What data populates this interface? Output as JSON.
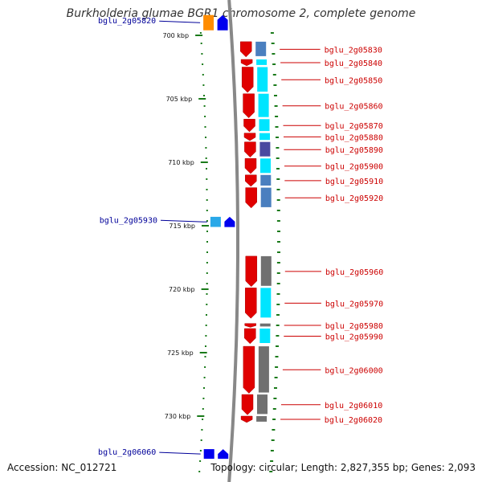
{
  "title": "Burkholderia glumae BGR1 chromosome 2, complete genome",
  "footer": {
    "accession": "Accession: NC_012721",
    "summary": "Topology: circular; Length: 2,827,355 bp; Genes: 2,093"
  },
  "axis": {
    "unit": "kbp",
    "ticks": [
      {
        "label": "700 kbp",
        "kbp": 700
      },
      {
        "label": "705 kbp",
        "kbp": 705
      },
      {
        "label": "710 kbp",
        "kbp": 710
      },
      {
        "label": "715 kbp",
        "kbp": 715
      },
      {
        "label": "720 kbp",
        "kbp": 720
      },
      {
        "label": "725 kbp",
        "kbp": 725
      },
      {
        "label": "730 kbp",
        "kbp": 730
      }
    ]
  },
  "colors": {
    "forward_strand": "#e00000",
    "reverse_strand": "#0000ee",
    "forward_label": "#cc0000",
    "reverse_label": "#000099",
    "tick": "#1a7a1a",
    "backbone": "#888888"
  },
  "genes": [
    {
      "id": "bglu_2g05820",
      "strand": "reverse",
      "start_kbp": 698.4,
      "end_kbp": 699.6,
      "cog_color": "#ff8c00"
    },
    {
      "id": "bglu_2g05830",
      "strand": "forward",
      "start_kbp": 700.5,
      "end_kbp": 701.7,
      "cog_color": "#4a7fbf"
    },
    {
      "id": "bglu_2g05840",
      "strand": "forward",
      "start_kbp": 701.9,
      "end_kbp": 702.4,
      "cog_color": "#00e5ff"
    },
    {
      "id": "bglu_2g05850",
      "strand": "forward",
      "start_kbp": 702.5,
      "end_kbp": 704.5,
      "cog_color": "#00e5ff"
    },
    {
      "id": "bglu_2g05860",
      "strand": "forward",
      "start_kbp": 704.6,
      "end_kbp": 706.5,
      "cog_color": "#00e5ff"
    },
    {
      "id": "bglu_2g05870",
      "strand": "forward",
      "start_kbp": 706.6,
      "end_kbp": 707.6,
      "cog_color": "#00e5ff"
    },
    {
      "id": "bglu_2g05880",
      "strand": "forward",
      "start_kbp": 707.7,
      "end_kbp": 708.3,
      "cog_color": "#00e5ff"
    },
    {
      "id": "bglu_2g05890",
      "strand": "forward",
      "start_kbp": 708.4,
      "end_kbp": 709.6,
      "cog_color": "#4a4aa0"
    },
    {
      "id": "bglu_2g05900",
      "strand": "forward",
      "start_kbp": 709.7,
      "end_kbp": 710.9,
      "cog_color": "#00e5ff"
    },
    {
      "id": "bglu_2g05910",
      "strand": "forward",
      "start_kbp": 711.0,
      "end_kbp": 711.9,
      "cog_color": "#4a7fbf"
    },
    {
      "id": "bglu_2g05920",
      "strand": "forward",
      "start_kbp": 712.0,
      "end_kbp": 713.6,
      "cog_color": "#4a7fbf"
    },
    {
      "id": "bglu_2g05930",
      "strand": "reverse",
      "start_kbp": 714.3,
      "end_kbp": 715.1,
      "cog_color": "#2aa8e8"
    },
    {
      "id": "bglu_2g05960",
      "strand": "forward",
      "start_kbp": 717.4,
      "end_kbp": 719.8,
      "cog_color": "#707070"
    },
    {
      "id": "bglu_2g05970",
      "strand": "forward",
      "start_kbp": 719.9,
      "end_kbp": 722.3,
      "cog_color": "#00e5ff"
    },
    {
      "id": "bglu_2g05980",
      "strand": "forward",
      "start_kbp": 722.7,
      "end_kbp": 723.0,
      "cog_color": "#707070"
    },
    {
      "id": "bglu_2g05990",
      "strand": "forward",
      "start_kbp": 723.1,
      "end_kbp": 724.3,
      "cog_color": "#00e5ff"
    },
    {
      "id": "bglu_2g06000",
      "strand": "forward",
      "start_kbp": 724.5,
      "end_kbp": 728.2,
      "cog_color": "#707070"
    },
    {
      "id": "bglu_2g06010",
      "strand": "forward",
      "start_kbp": 728.3,
      "end_kbp": 729.9,
      "cog_color": "#707070"
    },
    {
      "id": "bglu_2g06020",
      "strand": "forward",
      "start_kbp": 730.0,
      "end_kbp": 730.5,
      "cog_color": "#707070"
    },
    {
      "id": "bglu_2g06060",
      "strand": "reverse",
      "start_kbp": 732.6,
      "end_kbp": 733.1,
      "cog_color": "#0000ee"
    }
  ]
}
